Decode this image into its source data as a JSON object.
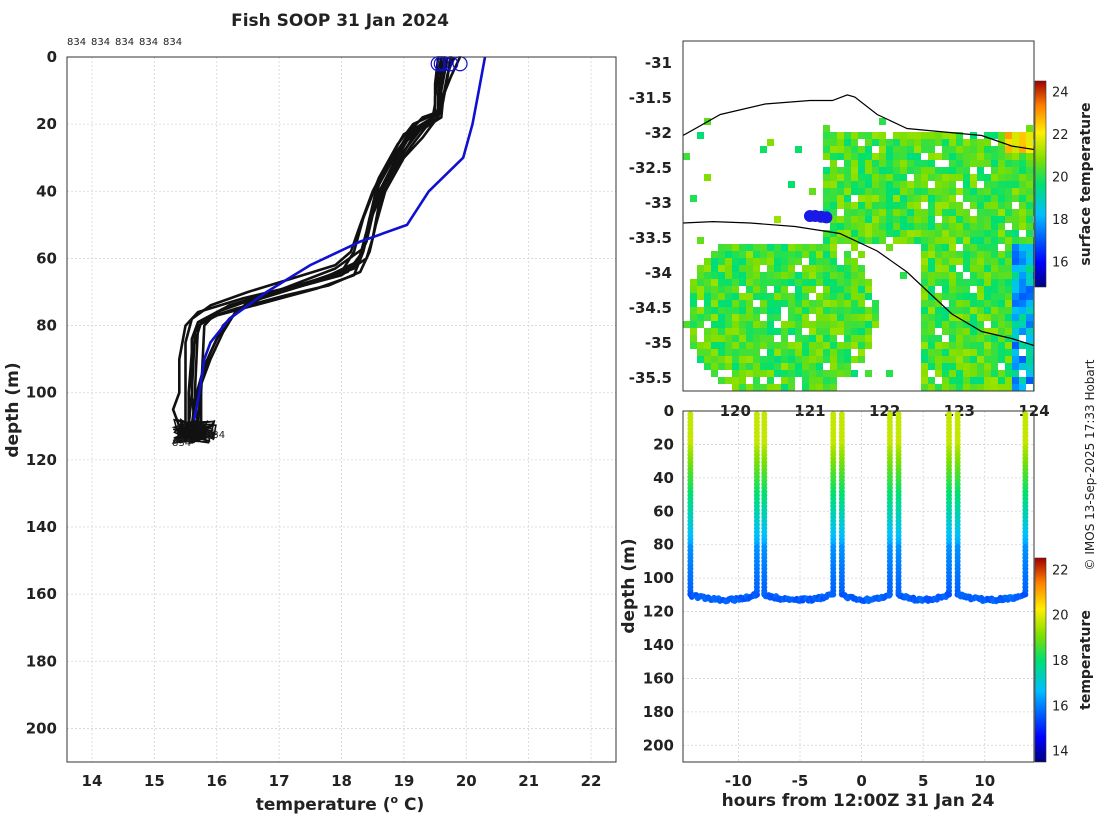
{
  "figure": {
    "title": "Fish SOOP 31 Jan 2024",
    "credit": "© IMOS 13-Sep-2025 17:33 Hobart"
  },
  "chart_data": [
    {
      "id": "profiles",
      "type": "line",
      "title": "Fish SOOP 31 Jan 2024",
      "xlabel": "temperature (",
      "xlabel_sup": "o",
      "xlabel_tail": " C)",
      "ylabel": "depth (m)",
      "xlim": [
        13.6,
        22.4
      ],
      "ylim": [
        0,
        210
      ],
      "xticks": [
        14,
        15,
        16,
        17,
        18,
        19,
        20,
        21,
        22
      ],
      "yticks": [
        0,
        20,
        40,
        60,
        80,
        100,
        120,
        140,
        160,
        180,
        200
      ],
      "grid": true,
      "top_labels": [
        "834",
        "834",
        "834",
        "834",
        "834"
      ],
      "bottom_label": "834",
      "climatology": {
        "name": "climatology",
        "color": "#1010d0",
        "points": [
          [
            20.3,
            0
          ],
          [
            20.2,
            10
          ],
          [
            20.1,
            20
          ],
          [
            19.95,
            30
          ],
          [
            19.4,
            40
          ],
          [
            19.05,
            50
          ],
          [
            18.3,
            55
          ],
          [
            17.5,
            62
          ],
          [
            16.8,
            70
          ],
          [
            16.2,
            78
          ],
          [
            15.9,
            85
          ],
          [
            15.8,
            90
          ],
          [
            15.72,
            100
          ],
          [
            15.62,
            110
          ]
        ]
      },
      "surface_markers": [
        19.55,
        19.75,
        19.65,
        19.9,
        19.6
      ],
      "profiles": [
        {
          "name": "834",
          "points": [
            [
              19.7,
              0
            ],
            [
              19.65,
              5
            ],
            [
              19.6,
              10
            ],
            [
              19.6,
              16
            ],
            [
              19.3,
              18
            ],
            [
              19.1,
              22
            ],
            [
              18.9,
              28
            ],
            [
              18.6,
              38
            ],
            [
              18.45,
              50
            ],
            [
              18.35,
              58
            ],
            [
              18.2,
              65
            ],
            [
              17.6,
              69
            ],
            [
              16.8,
              73
            ],
            [
              16.0,
              77
            ],
            [
              15.7,
              80
            ],
            [
              15.65,
              100
            ],
            [
              15.7,
              110
            ]
          ]
        },
        {
          "name": "834",
          "points": [
            [
              19.8,
              0
            ],
            [
              19.7,
              5
            ],
            [
              19.65,
              10
            ],
            [
              19.6,
              16
            ],
            [
              19.5,
              19
            ],
            [
              19.3,
              24
            ],
            [
              19.0,
              30
            ],
            [
              18.7,
              40
            ],
            [
              18.55,
              50
            ],
            [
              18.45,
              58
            ],
            [
              18.3,
              64
            ],
            [
              17.8,
              68
            ],
            [
              17.1,
              71
            ],
            [
              16.3,
              75
            ],
            [
              15.8,
              78
            ],
            [
              15.65,
              82
            ],
            [
              15.6,
              100
            ],
            [
              15.65,
              110
            ]
          ]
        },
        {
          "name": "834",
          "points": [
            [
              19.6,
              0
            ],
            [
              19.55,
              6
            ],
            [
              19.5,
              12
            ],
            [
              19.5,
              17
            ],
            [
              19.15,
              20
            ],
            [
              18.9,
              26
            ],
            [
              18.6,
              36
            ],
            [
              18.35,
              48
            ],
            [
              18.2,
              58
            ],
            [
              18.0,
              64
            ],
            [
              17.3,
              68
            ],
            [
              16.4,
              72
            ],
            [
              15.7,
              76
            ],
            [
              15.5,
              80
            ],
            [
              15.4,
              90
            ],
            [
              15.4,
              100
            ],
            [
              15.3,
              105
            ],
            [
              15.4,
              110
            ]
          ]
        },
        {
          "name": "834",
          "points": [
            [
              19.6,
              0
            ],
            [
              19.55,
              6
            ],
            [
              19.6,
              12
            ],
            [
              19.55,
              18
            ],
            [
              19.2,
              22
            ],
            [
              18.95,
              30
            ],
            [
              18.7,
              38
            ],
            [
              18.5,
              46
            ],
            [
              18.35,
              56
            ],
            [
              18.25,
              62
            ],
            [
              17.5,
              67
            ],
            [
              16.6,
              72
            ],
            [
              16.0,
              76
            ],
            [
              15.8,
              80
            ],
            [
              15.75,
              100
            ],
            [
              15.75,
              110
            ]
          ]
        },
        {
          "name": "834",
          "points": [
            [
              19.9,
              0
            ],
            [
              19.75,
              6
            ],
            [
              19.6,
              13
            ],
            [
              19.55,
              18
            ],
            [
              19.35,
              21
            ],
            [
              19.1,
              27
            ],
            [
              18.85,
              34
            ],
            [
              18.6,
              44
            ],
            [
              18.5,
              54
            ],
            [
              18.4,
              60
            ],
            [
              18.0,
              65
            ],
            [
              17.4,
              68
            ],
            [
              16.6,
              72
            ],
            [
              16.2,
              78
            ],
            [
              16.0,
              84
            ],
            [
              15.8,
              92
            ],
            [
              15.65,
              102
            ],
            [
              15.6,
              110
            ]
          ]
        },
        {
          "name": "834",
          "points": [
            [
              19.55,
              0
            ],
            [
              19.5,
              8
            ],
            [
              19.5,
              14
            ],
            [
              19.45,
              19
            ],
            [
              19.0,
              23
            ],
            [
              18.75,
              31
            ],
            [
              18.5,
              40
            ],
            [
              18.3,
              50
            ],
            [
              18.15,
              58
            ],
            [
              17.9,
              62
            ],
            [
              17.2,
              66
            ],
            [
              16.5,
              70
            ],
            [
              15.9,
              74
            ],
            [
              15.6,
              78
            ],
            [
              15.5,
              85
            ],
            [
              15.5,
              100
            ],
            [
              15.5,
              110
            ]
          ]
        },
        {
          "name": "834",
          "points": [
            [
              19.7,
              0
            ],
            [
              19.6,
              5
            ],
            [
              19.55,
              11
            ],
            [
              19.55,
              17
            ],
            [
              19.3,
              20
            ],
            [
              19.05,
              25
            ],
            [
              18.8,
              33
            ],
            [
              18.55,
              42
            ],
            [
              18.45,
              50
            ],
            [
              18.35,
              57
            ],
            [
              17.9,
              63
            ],
            [
              17.2,
              68
            ],
            [
              16.5,
              73
            ],
            [
              16.1,
              80
            ],
            [
              15.9,
              88
            ],
            [
              15.75,
              96
            ],
            [
              15.7,
              110
            ]
          ]
        },
        {
          "name": "834",
          "points": [
            [
              19.6,
              0
            ],
            [
              19.6,
              8
            ],
            [
              19.58,
              15
            ],
            [
              19.4,
              19
            ],
            [
              19.1,
              23
            ],
            [
              18.8,
              30
            ],
            [
              18.55,
              40
            ],
            [
              18.4,
              52
            ],
            [
              18.3,
              59
            ],
            [
              18.1,
              64
            ],
            [
              17.4,
              68
            ],
            [
              16.7,
              72
            ],
            [
              16.3,
              76
            ],
            [
              16.1,
              82
            ],
            [
              15.9,
              90
            ],
            [
              15.7,
              100
            ],
            [
              15.6,
              110
            ]
          ]
        },
        {
          "name": "834",
          "points": [
            [
              19.75,
              0
            ],
            [
              19.7,
              6
            ],
            [
              19.62,
              14
            ],
            [
              19.6,
              18
            ],
            [
              19.25,
              22
            ],
            [
              19.0,
              28
            ],
            [
              18.75,
              36
            ],
            [
              18.5,
              47
            ],
            [
              18.4,
              55
            ],
            [
              18.25,
              61
            ],
            [
              17.7,
              66
            ],
            [
              16.9,
              70
            ],
            [
              16.2,
              74
            ],
            [
              15.75,
              79
            ],
            [
              15.6,
              88
            ],
            [
              15.55,
              100
            ],
            [
              15.55,
              110
            ]
          ]
        },
        {
          "name": "834",
          "points": [
            [
              19.65,
              0
            ],
            [
              19.6,
              7
            ],
            [
              19.58,
              13
            ],
            [
              19.55,
              17
            ],
            [
              19.2,
              21
            ],
            [
              18.95,
              27
            ],
            [
              18.7,
              37
            ],
            [
              18.45,
              48
            ],
            [
              18.35,
              57
            ],
            [
              18.2,
              63
            ],
            [
              17.6,
              67
            ],
            [
              16.8,
              71
            ],
            [
              16.1,
              75
            ],
            [
              15.7,
              79
            ],
            [
              15.6,
              84
            ],
            [
              15.6,
              100
            ],
            [
              15.55,
              110
            ]
          ]
        }
      ]
    },
    {
      "id": "map",
      "type": "heatmap",
      "xlim": [
        119.3,
        124.0
      ],
      "ylim": [
        -35.7,
        -30.7
      ],
      "xticks": [
        120,
        121,
        122,
        123,
        124
      ],
      "yticks": [
        -31,
        -31.5,
        -32,
        -32.5,
        -33,
        -33.5,
        -34,
        -34.5,
        -35,
        -35.5
      ],
      "colorbar_label": "surface temperature",
      "colorbar_range": [
        14.8,
        24.5
      ],
      "colorbar_ticks": [
        16,
        18,
        20,
        22,
        24
      ],
      "track": [
        [
          121.0,
          -33.2
        ],
        [
          121.07,
          -33.2
        ],
        [
          121.15,
          -33.21
        ],
        [
          121.22,
          -33.22
        ]
      ],
      "coastline": [
        [
          119.3,
          -32.05
        ],
        [
          119.8,
          -31.75
        ],
        [
          120.4,
          -31.6
        ],
        [
          121.0,
          -31.55
        ],
        [
          121.3,
          -31.55
        ],
        [
          121.5,
          -31.47
        ],
        [
          121.6,
          -31.5
        ],
        [
          121.9,
          -31.75
        ],
        [
          122.3,
          -31.95
        ],
        [
          122.8,
          -32.0
        ],
        [
          123.3,
          -32.05
        ],
        [
          123.7,
          -32.2
        ],
        [
          124.0,
          -32.25
        ]
      ],
      "contour": [
        [
          119.3,
          -33.3
        ],
        [
          119.7,
          -33.28
        ],
        [
          120.2,
          -33.3
        ],
        [
          120.8,
          -33.35
        ],
        [
          121.4,
          -33.45
        ],
        [
          121.9,
          -33.7
        ],
        [
          122.3,
          -34.0
        ],
        [
          122.6,
          -34.3
        ],
        [
          122.9,
          -34.6
        ],
        [
          123.3,
          -34.85
        ],
        [
          123.7,
          -34.95
        ],
        [
          124.0,
          -35.05
        ]
      ]
    },
    {
      "id": "timeseries",
      "type": "scatter",
      "xlabel": "hours from 12:00Z 31 Jan 24",
      "ylabel": "depth (m)",
      "xlim": [
        -14.5,
        14.0
      ],
      "ylim": [
        0,
        210
      ],
      "xticks": [
        -10,
        -5,
        0,
        5,
        10
      ],
      "yticks": [
        0,
        20,
        40,
        60,
        80,
        100,
        120,
        140,
        160,
        180,
        200
      ],
      "colorbar_label": "temperature",
      "colorbar_range": [
        13.5,
        22.5
      ],
      "colorbar_ticks": [
        14,
        16,
        18,
        20,
        22
      ],
      "bottom_depth": 112,
      "casts": [
        -13.9,
        -8.5,
        -7.9,
        -2.3,
        -1.6,
        2.3,
        3.0,
        7.1,
        7.8,
        13.3
      ]
    }
  ]
}
